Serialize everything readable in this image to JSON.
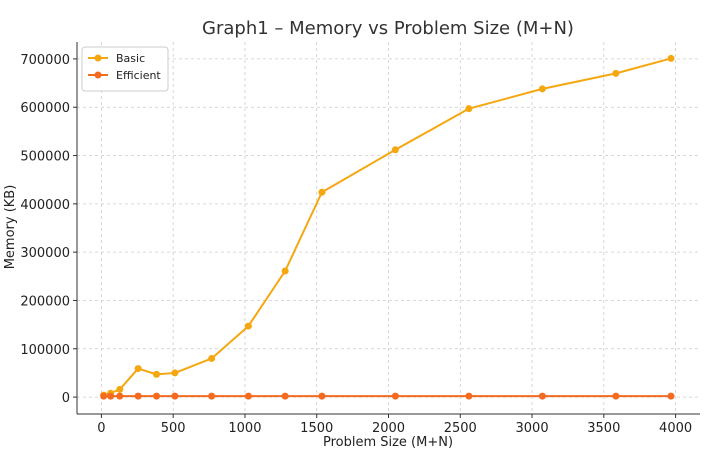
{
  "chart_data": {
    "type": "line",
    "title": "Graph1 – Memory vs Problem Size (M+N)",
    "xlabel": "Problem Size (M+N)",
    "ylabel": "Memory (KB)",
    "xlim": [
      -170,
      4170
    ],
    "ylim": [
      -35000,
      735000
    ],
    "x_ticks": [
      0,
      500,
      1000,
      1500,
      2000,
      2500,
      3000,
      3500,
      4000
    ],
    "y_ticks": [
      0,
      100000,
      200000,
      300000,
      400000,
      500000,
      600000,
      700000
    ],
    "grid": true,
    "legend_position": "top-left",
    "series": [
      {
        "name": "Basic",
        "color": "#f5a70f",
        "points": [
          [
            16,
            4000
          ],
          [
            64,
            8000
          ],
          [
            128,
            16000
          ],
          [
            256,
            59000
          ],
          [
            384,
            47000
          ],
          [
            512,
            50000
          ],
          [
            768,
            80000
          ],
          [
            1024,
            147000
          ],
          [
            1280,
            261000
          ],
          [
            1536,
            424000
          ],
          [
            2048,
            512000
          ],
          [
            2560,
            597000
          ],
          [
            3072,
            638000
          ],
          [
            3584,
            670000
          ],
          [
            3968,
            701000
          ]
        ]
      },
      {
        "name": "Efficient",
        "color": "#f36b21",
        "points": [
          [
            16,
            2000
          ],
          [
            64,
            2000
          ],
          [
            128,
            2000
          ],
          [
            256,
            2000
          ],
          [
            384,
            2000
          ],
          [
            512,
            2000
          ],
          [
            768,
            2000
          ],
          [
            1024,
            2000
          ],
          [
            1280,
            2000
          ],
          [
            1536,
            2000
          ],
          [
            2048,
            2000
          ],
          [
            2560,
            2000
          ],
          [
            3072,
            2000
          ],
          [
            3584,
            2000
          ],
          [
            3968,
            2000
          ]
        ]
      }
    ]
  }
}
